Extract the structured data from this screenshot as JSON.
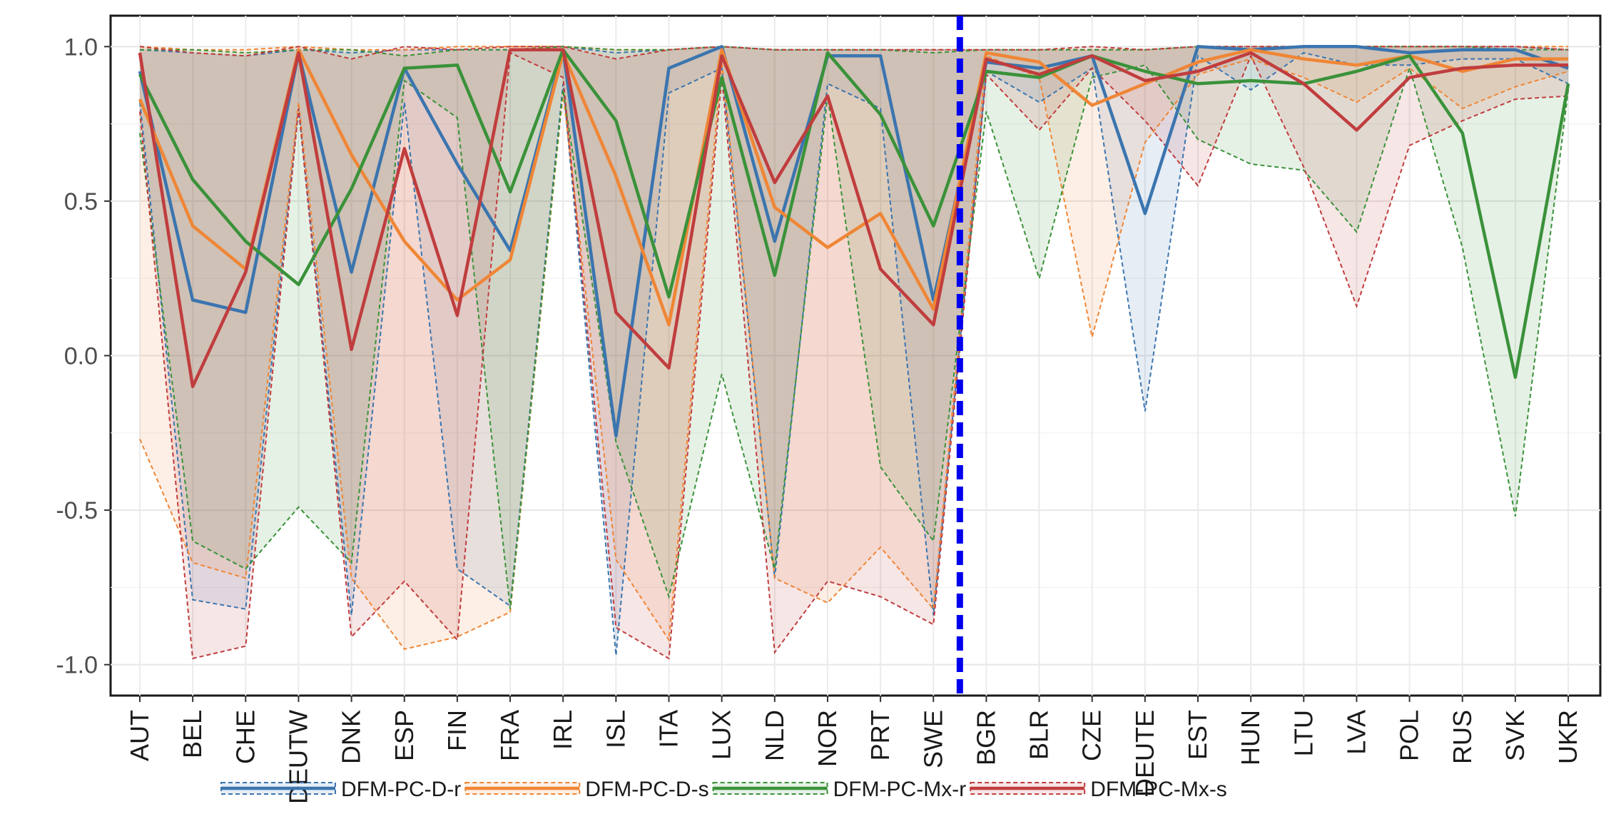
{
  "chart_data": {
    "type": "line",
    "title": "",
    "xlabel": "",
    "ylabel": "",
    "ylim": [
      -1.1,
      1.1
    ],
    "yticks": [
      "-1.0",
      "-0.5",
      "0.0",
      "0.5",
      "1.0"
    ],
    "yticks_values": [
      -1.0,
      -0.5,
      0.0,
      0.5,
      1.0
    ],
    "grid": true,
    "legend_position": "bottom",
    "divider_after": "SWE",
    "divider_color": "#0000ee",
    "categories": [
      "AUT",
      "BEL",
      "CHE",
      "DEUTW",
      "DNK",
      "ESP",
      "FIN",
      "FRA",
      "IRL",
      "ISL",
      "ITA",
      "LUX",
      "NLD",
      "NOR",
      "PRT",
      "SWE",
      "BGR",
      "BLR",
      "CZE",
      "DEUTE",
      "EST",
      "HUN",
      "LTU",
      "LVA",
      "POL",
      "RUS",
      "SVK",
      "UKR"
    ],
    "series": [
      {
        "name": "DFM-PC-D-r",
        "color": "#3b75af",
        "fill": "#3b75af",
        "values": [
          0.92,
          0.18,
          0.14,
          0.98,
          0.27,
          0.93,
          0.62,
          0.34,
          0.99,
          -0.26,
          0.93,
          1.0,
          0.37,
          0.97,
          0.97,
          0.18,
          0.95,
          0.93,
          0.97,
          0.46,
          1.0,
          0.99,
          1.0,
          1.0,
          0.98,
          0.99,
          0.99,
          0.93
        ],
        "lower": [
          0.82,
          -0.79,
          -0.82,
          0.8,
          -0.84,
          0.82,
          -0.69,
          -0.81,
          0.88,
          -0.97,
          0.85,
          0.93,
          -0.72,
          0.88,
          0.8,
          -0.84,
          0.92,
          0.82,
          0.93,
          -0.18,
          0.97,
          0.86,
          0.98,
          0.94,
          0.94,
          0.96,
          0.96,
          0.88
        ],
        "upper": [
          0.99,
          0.98,
          0.97,
          0.99,
          0.98,
          0.99,
          0.99,
          0.99,
          1.0,
          0.98,
          0.99,
          1.0,
          0.99,
          0.99,
          0.99,
          0.99,
          0.99,
          0.99,
          0.99,
          0.99,
          1.0,
          1.0,
          1.0,
          1.0,
          1.0,
          1.0,
          1.0,
          0.99
        ]
      },
      {
        "name": "DFM-PC-D-s",
        "color": "#ef8636",
        "fill": "#ef8636",
        "values": [
          0.83,
          0.42,
          0.28,
          0.99,
          0.65,
          0.37,
          0.18,
          0.31,
          0.98,
          0.58,
          0.1,
          0.99,
          0.48,
          0.35,
          0.46,
          0.15,
          0.98,
          0.95,
          0.81,
          0.88,
          0.95,
          0.99,
          0.96,
          0.94,
          0.97,
          0.92,
          0.96,
          0.96
        ],
        "lower": [
          -0.27,
          -0.67,
          -0.72,
          0.82,
          -0.72,
          -0.95,
          -0.91,
          -0.83,
          0.85,
          -0.66,
          -0.92,
          0.95,
          -0.72,
          -0.8,
          -0.62,
          -0.82,
          0.97,
          0.9,
          0.06,
          0.69,
          0.91,
          0.96,
          0.9,
          0.82,
          0.93,
          0.8,
          0.87,
          0.92
        ],
        "upper": [
          1.0,
          0.99,
          0.99,
          1.0,
          0.99,
          0.99,
          1.0,
          1.0,
          1.0,
          0.99,
          0.99,
          1.0,
          0.99,
          0.99,
          0.99,
          0.99,
          0.99,
          0.99,
          0.99,
          0.99,
          1.0,
          1.0,
          1.0,
          1.0,
          1.0,
          1.0,
          1.0,
          1.0
        ]
      },
      {
        "name": "DFM-PC-Mx-r",
        "color": "#3a923a",
        "fill": "#3a923a",
        "values": [
          0.91,
          0.57,
          0.37,
          0.23,
          0.54,
          0.93,
          0.94,
          0.53,
          0.99,
          0.76,
          0.19,
          0.9,
          0.26,
          0.98,
          0.78,
          0.42,
          0.92,
          0.9,
          0.97,
          0.92,
          0.88,
          0.89,
          0.88,
          0.92,
          0.97,
          0.72,
          -0.07,
          0.88
        ],
        "lower": [
          0.72,
          -0.6,
          -0.69,
          -0.49,
          -0.67,
          0.89,
          0.77,
          -0.82,
          0.86,
          -0.28,
          -0.78,
          -0.06,
          -0.69,
          0.84,
          -0.36,
          -0.6,
          0.79,
          0.25,
          0.9,
          0.94,
          0.7,
          0.62,
          0.6,
          0.4,
          0.93,
          0.35,
          -0.52,
          0.86
        ],
        "upper": [
          0.99,
          0.99,
          0.98,
          0.99,
          0.99,
          0.97,
          0.99,
          0.99,
          1.0,
          0.99,
          0.99,
          1.0,
          0.99,
          0.99,
          0.99,
          0.98,
          0.99,
          0.99,
          0.99,
          0.99,
          1.0,
          0.99,
          1.0,
          1.0,
          1.0,
          1.0,
          0.99,
          0.99
        ]
      },
      {
        "name": "DFM-PC-Mx-s",
        "color": "#c03d3e",
        "fill": "#c03d3e",
        "values": [
          0.98,
          -0.1,
          0.27,
          0.98,
          0.02,
          0.67,
          0.13,
          0.99,
          0.99,
          0.14,
          -0.04,
          0.97,
          0.56,
          0.84,
          0.28,
          0.1,
          0.96,
          0.91,
          0.97,
          0.89,
          0.92,
          0.98,
          0.88,
          0.73,
          0.9,
          0.93,
          0.94,
          0.94
        ],
        "lower": [
          0.79,
          -0.98,
          -0.94,
          0.8,
          -0.91,
          -0.73,
          -0.92,
          0.98,
          0.9,
          -0.88,
          -0.98,
          0.9,
          -0.96,
          -0.73,
          -0.78,
          -0.87,
          0.91,
          0.73,
          0.93,
          0.76,
          0.55,
          0.97,
          0.61,
          0.16,
          0.68,
          0.76,
          0.83,
          0.84
        ],
        "upper": [
          1.0,
          0.98,
          0.97,
          1.0,
          0.96,
          1.0,
          0.99,
          1.0,
          1.0,
          0.96,
          0.99,
          1.0,
          0.99,
          0.99,
          0.99,
          0.99,
          0.99,
          0.99,
          1.0,
          0.99,
          1.0,
          1.0,
          1.0,
          1.0,
          1.0,
          1.0,
          1.0,
          0.99
        ]
      }
    ]
  }
}
